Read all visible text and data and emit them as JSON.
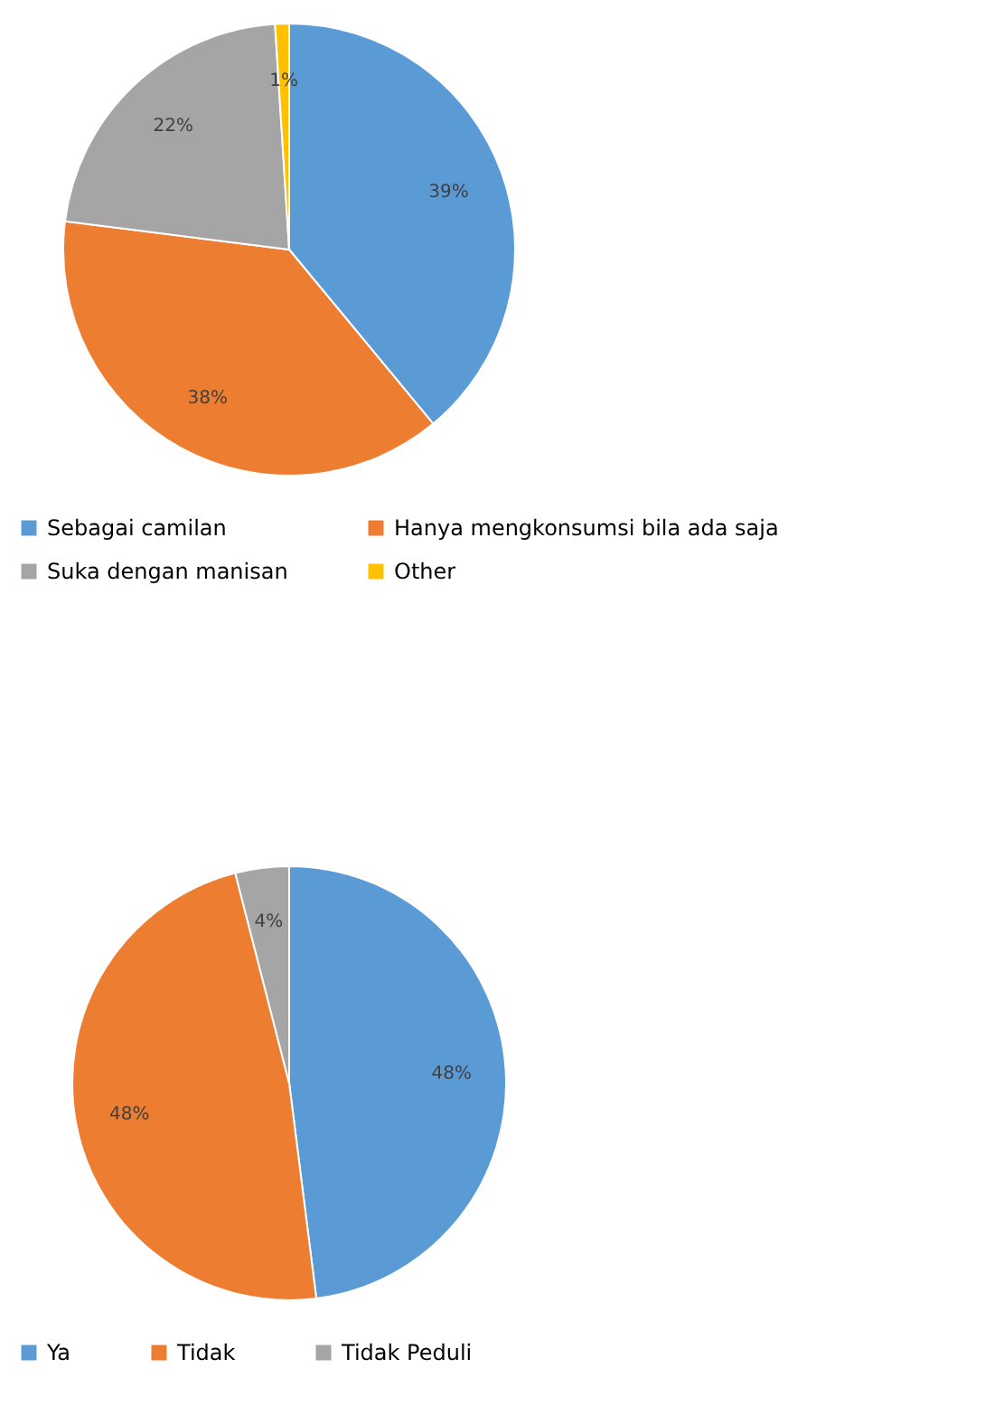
{
  "chart_data": [
    {
      "type": "pie",
      "categories": [
        "Sebagai camilan",
        "Hanya mengkonsumsi bila ada saja",
        "Suka dengan manisan",
        "Other"
      ],
      "values": [
        39,
        38,
        22,
        1
      ],
      "colors": [
        "#5b9bd5",
        "#ed7d31",
        "#a5a5a5",
        "#ffc000"
      ],
      "value_labels": [
        "39%",
        "38%",
        "22%",
        "1%"
      ],
      "legend": "bottom"
    },
    {
      "type": "pie",
      "categories": [
        "Ya",
        "Tidak",
        "Tidak Peduli"
      ],
      "values": [
        48,
        48,
        4
      ],
      "colors": [
        "#5b9bd5",
        "#ed7d31",
        "#a5a5a5"
      ],
      "value_labels": [
        "48%",
        "48%",
        "4%"
      ],
      "legend": "bottom"
    }
  ]
}
